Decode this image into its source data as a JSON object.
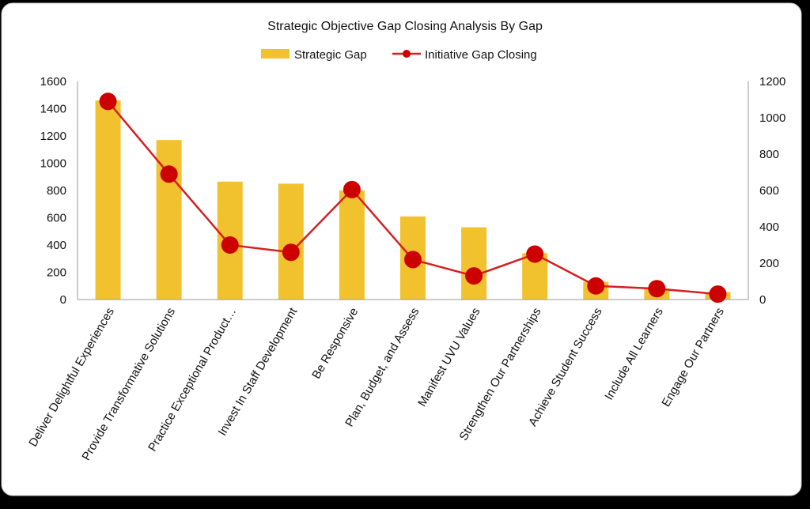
{
  "chart_data": {
    "type": "bar",
    "title": "Strategic Objective Gap Closing Analysis By Gap",
    "legend_position": "top",
    "grid": false,
    "categories": [
      "Deliver Delightful Experiences",
      "Provide Transformative Solutions",
      "Practice Exceptional Product…",
      "Invest In Staff Development",
      "Be Responsive",
      "Plan, Budget, and Assess",
      "Manifest UVU Values",
      "Strengthen Our Partnerships",
      "Achieve Student Success",
      "Include All Learners",
      "Engage Our Partners"
    ],
    "series": [
      {
        "name": "Strategic Gap",
        "type": "bar",
        "axis": "left",
        "color": "#F2C12E",
        "values": [
          1460,
          1170,
          865,
          850,
          800,
          610,
          530,
          340,
          130,
          80,
          55
        ]
      },
      {
        "name": "Initiative Gap Closing",
        "type": "line",
        "axis": "right",
        "color": "#CC0000",
        "line_color": "#D42020",
        "values": [
          1090,
          690,
          300,
          260,
          605,
          220,
          130,
          250,
          75,
          60,
          30
        ]
      }
    ],
    "y_left": {
      "min": 0,
      "max": 1600,
      "ticks": [
        "0",
        "200",
        "400",
        "600",
        "800",
        "1000",
        "1200",
        "1400",
        "1600"
      ]
    },
    "y_right": {
      "min": 0,
      "max": 1200,
      "ticks": [
        "0",
        "200",
        "400",
        "600",
        "800",
        "1000",
        "1200"
      ]
    }
  }
}
